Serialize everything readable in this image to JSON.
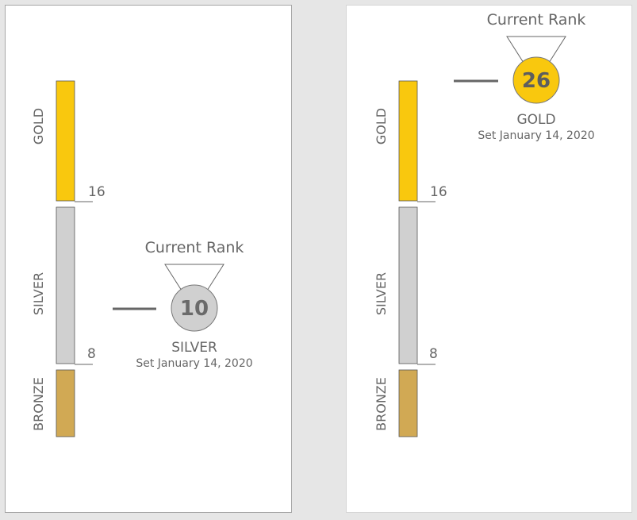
{
  "colors": {
    "gold": "#F9C80E",
    "silver": "#D0D0D0",
    "bronze": "#D1A954",
    "text": "#666666",
    "line": "#666666",
    "gold_number": "#5e5e5e",
    "silver_number": "#6a6a6a"
  },
  "scale": {
    "tiers": [
      {
        "name": "GOLD",
        "color": "#F9C80E"
      },
      {
        "name": "SILVER",
        "color": "#D0D0D0"
      },
      {
        "name": "BRONZE",
        "color": "#D1A954"
      }
    ],
    "thresholds": [
      "16",
      "8"
    ]
  },
  "cards": [
    {
      "current_rank_label": "Current Rank",
      "rank_value": "10",
      "tier": "SILVER",
      "set_date": "Set January 14, 2020",
      "medal_icon": "silver-medal-icon"
    },
    {
      "current_rank_label": "Current Rank",
      "rank_value": "26",
      "tier": "GOLD",
      "set_date": "Set January 14, 2020",
      "medal_icon": "gold-medal-icon"
    }
  ]
}
